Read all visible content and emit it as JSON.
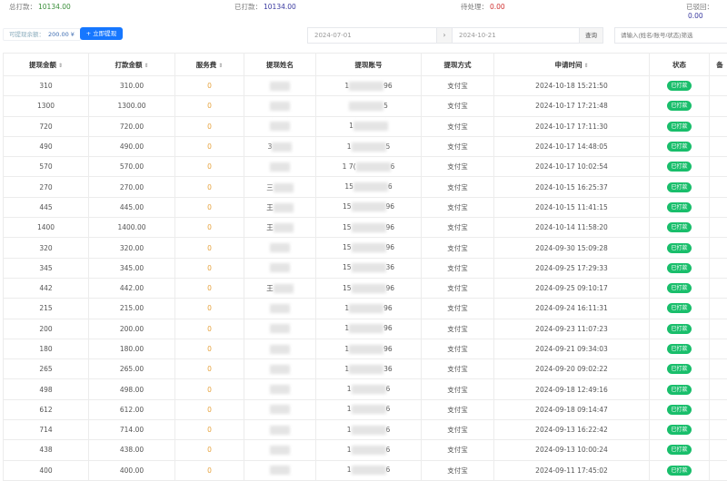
{
  "stats": [
    {
      "label": "总打款：",
      "value": "10134.00",
      "color": "#3a8e3a"
    },
    {
      "label": "已打款：",
      "value": "10134.00",
      "color": "#3a3aa0"
    },
    {
      "label": "待处理：",
      "value": "0.00",
      "color": "#d03030"
    },
    {
      "label": "已驳回：",
      "value": "0.00",
      "color": "#3a3aa0"
    }
  ],
  "toolbar": {
    "balance_label": "可提现余额：",
    "balance_value": "200.00 ¥",
    "withdraw_label": "+ 立即提现",
    "start_date": "2024-07-01",
    "date_sep": "›",
    "end_date": "2024-10-21",
    "query_label": "查询",
    "search_placeholder": "请输入(姓名/账号/状态)筛选"
  },
  "columns": [
    "提现金额",
    "打款金额",
    "服务费",
    "提现姓名",
    "提现账号",
    "提现方式",
    "申请时间",
    "状态",
    "备"
  ],
  "sortable": [
    true,
    true,
    true,
    false,
    false,
    false,
    true,
    false,
    false
  ],
  "rows": [
    {
      "amount": "310",
      "paid": "310.00",
      "fee": "0",
      "name": "",
      "acc_pre": "1",
      "acc_suf": "96",
      "method": "支付宝",
      "time": "2024-10-18 15:21:50",
      "status": "已打款"
    },
    {
      "amount": "1300",
      "paid": "1300.00",
      "fee": "0",
      "name": "",
      "acc_pre": "",
      "acc_suf": "5",
      "method": "支付宝",
      "time": "2024-10-17 17:21:48",
      "status": "已打款"
    },
    {
      "amount": "720",
      "paid": "720.00",
      "fee": "0",
      "name": "",
      "acc_pre": "1",
      "acc_suf": "",
      "method": "支付宝",
      "time": "2024-10-17 17:11:30",
      "status": "已打款"
    },
    {
      "amount": "490",
      "paid": "490.00",
      "fee": "0",
      "name": "3",
      "acc_pre": "1",
      "acc_suf": "5",
      "method": "支付宝",
      "time": "2024-10-17 14:48:05",
      "status": "已打款"
    },
    {
      "amount": "570",
      "paid": "570.00",
      "fee": "0",
      "name": "",
      "acc_pre": "1 7(",
      "acc_suf": "6",
      "method": "支付宝",
      "time": "2024-10-17 10:02:54",
      "status": "已打款"
    },
    {
      "amount": "270",
      "paid": "270.00",
      "fee": "0",
      "name": "三",
      "acc_pre": "15",
      "acc_suf": "6",
      "method": "支付宝",
      "time": "2024-10-15 16:25:37",
      "status": "已打款"
    },
    {
      "amount": "445",
      "paid": "445.00",
      "fee": "0",
      "name": "王",
      "acc_pre": "15",
      "acc_suf": "96",
      "method": "支付宝",
      "time": "2024-10-15 11:41:15",
      "status": "已打款"
    },
    {
      "amount": "1400",
      "paid": "1400.00",
      "fee": "0",
      "name": "王",
      "acc_pre": "15",
      "acc_suf": "96",
      "method": "支付宝",
      "time": "2024-10-14 11:58:20",
      "status": "已打款"
    },
    {
      "amount": "320",
      "paid": "320.00",
      "fee": "0",
      "name": "",
      "acc_pre": "15",
      "acc_suf": "96",
      "method": "支付宝",
      "time": "2024-09-30 15:09:28",
      "status": "已打款"
    },
    {
      "amount": "345",
      "paid": "345.00",
      "fee": "0",
      "name": "",
      "acc_pre": "15",
      "acc_suf": "36",
      "method": "支付宝",
      "time": "2024-09-25 17:29:33",
      "status": "已打款"
    },
    {
      "amount": "442",
      "paid": "442.00",
      "fee": "0",
      "name": "王",
      "acc_pre": "15",
      "acc_suf": "96",
      "method": "支付宝",
      "time": "2024-09-25 09:10:17",
      "status": "已打款"
    },
    {
      "amount": "215",
      "paid": "215.00",
      "fee": "0",
      "name": "",
      "acc_pre": "1",
      "acc_suf": "96",
      "method": "支付宝",
      "time": "2024-09-24 16:11:31",
      "status": "已打款"
    },
    {
      "amount": "200",
      "paid": "200.00",
      "fee": "0",
      "name": "",
      "acc_pre": "1",
      "acc_suf": "96",
      "method": "支付宝",
      "time": "2024-09-23 11:07:23",
      "status": "已打款"
    },
    {
      "amount": "180",
      "paid": "180.00",
      "fee": "0",
      "name": "",
      "acc_pre": "1",
      "acc_suf": "96",
      "method": "支付宝",
      "time": "2024-09-21 09:34:03",
      "status": "已打款"
    },
    {
      "amount": "265",
      "paid": "265.00",
      "fee": "0",
      "name": "",
      "acc_pre": "1",
      "acc_suf": "36",
      "method": "支付宝",
      "time": "2024-09-20 09:02:22",
      "status": "已打款"
    },
    {
      "amount": "498",
      "paid": "498.00",
      "fee": "0",
      "name": "",
      "acc_pre": "1",
      "acc_suf": "6",
      "method": "支付宝",
      "time": "2024-09-18 12:49:16",
      "status": "已打款"
    },
    {
      "amount": "612",
      "paid": "612.00",
      "fee": "0",
      "name": "",
      "acc_pre": "1",
      "acc_suf": "6",
      "method": "支付宝",
      "time": "2024-09-18 09:14:47",
      "status": "已打款"
    },
    {
      "amount": "714",
      "paid": "714.00",
      "fee": "0",
      "name": "",
      "acc_pre": "1",
      "acc_suf": "6",
      "method": "支付宝",
      "time": "2024-09-13 16:22:42",
      "status": "已打款"
    },
    {
      "amount": "438",
      "paid": "438.00",
      "fee": "0",
      "name": "",
      "acc_pre": "1",
      "acc_suf": "6",
      "method": "支付宝",
      "time": "2024-09-13 10:00:24",
      "status": "已打款"
    },
    {
      "amount": "400",
      "paid": "400.00",
      "fee": "0",
      "name": "",
      "acc_pre": "1",
      "acc_suf": "6",
      "method": "支付宝",
      "time": "2024-09-11 17:45:02",
      "status": "已打款"
    }
  ]
}
